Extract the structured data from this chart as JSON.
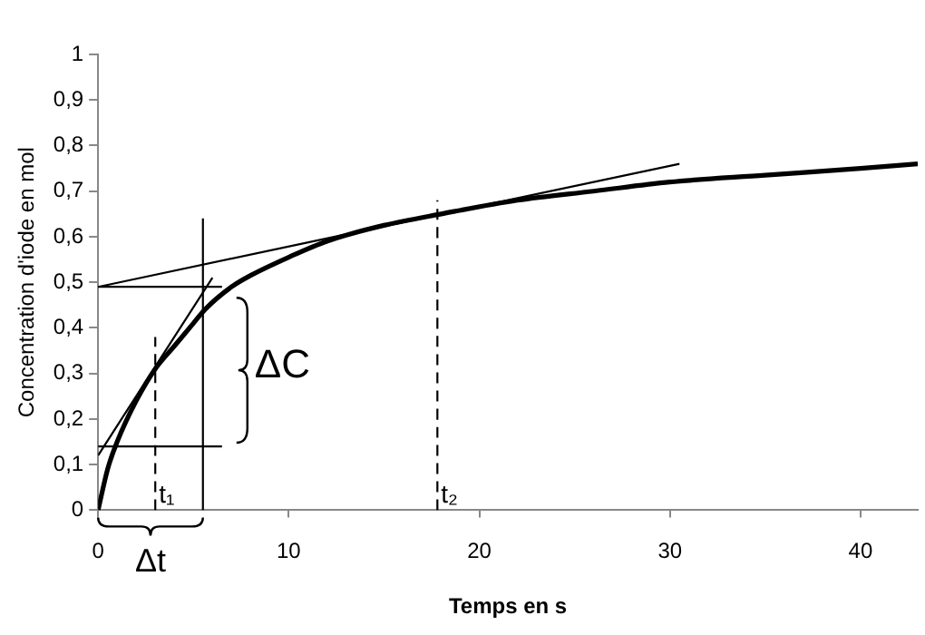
{
  "chart_data": {
    "type": "line",
    "xlabel": "Temps en s",
    "ylabel": "Concentration d'iode en mol",
    "xlim": [
      0,
      43
    ],
    "ylim": [
      0,
      1
    ],
    "xticks": [
      0,
      10,
      20,
      30,
      40
    ],
    "yticks": [
      0,
      {
        "value": 0.1,
        "label": "0,1"
      },
      {
        "value": 0.2,
        "label": "0,2"
      },
      {
        "value": 0.3,
        "label": "0,3"
      },
      {
        "value": 0.4,
        "label": "0,4"
      },
      {
        "value": 0.5,
        "label": "0,5"
      },
      {
        "value": 0.6,
        "label": "0,6"
      },
      {
        "value": 0.7,
        "label": "0,7"
      },
      {
        "value": 0.8,
        "label": "0,8"
      },
      {
        "value": 0.9,
        "label": "0,9"
      },
      1
    ],
    "grid": false,
    "legend": false,
    "marker": "none",
    "series": [
      {
        "color": "#000000",
        "line_style": "solid",
        "x": [
          0,
          0.5,
          1,
          2,
          3,
          4,
          5,
          5.6,
          7,
          8,
          10,
          12,
          15,
          18,
          22,
          26,
          30,
          35,
          40,
          43
        ],
        "values": [
          0,
          0.09,
          0.15,
          0.24,
          0.31,
          0.36,
          0.41,
          0.44,
          0.49,
          0.515,
          0.555,
          0.59,
          0.625,
          0.65,
          0.68,
          0.7,
          0.72,
          0.735,
          0.75,
          0.76
        ]
      },
      {
        "color": "#000000",
        "line_style": "solid",
        "x": [
          0,
          6
        ],
        "values": [
          0.12,
          0.51
        ]
      },
      {
        "color": "#000000",
        "line_style": "solid",
        "x": [
          0,
          30.5
        ],
        "values": [
          0.49,
          0.76
        ]
      },
      {
        "color": "#000000",
        "line_style": "solid",
        "x": [
          0,
          6.5
        ],
        "values": [
          0.49,
          0.49
        ]
      },
      {
        "color": "#000000",
        "line_style": "solid",
        "x": [
          0,
          6.5
        ],
        "values": [
          0.14,
          0.14
        ]
      },
      {
        "color": "#000000",
        "line_style": "solid",
        "x": [
          5.5,
          5.5
        ],
        "values": [
          0,
          0.64
        ]
      },
      {
        "color": "#000000",
        "line_style": "dashed",
        "x": [
          3,
          3
        ],
        "values": [
          0,
          0.38
        ]
      },
      {
        "color": "#000000",
        "line_style": "dashed",
        "x": [
          17.8,
          17.8
        ],
        "values": [
          0,
          0.68
        ]
      }
    ],
    "annotations": [
      {
        "text": "t₁",
        "x": 3,
        "y": 0
      },
      {
        "text": "t₂",
        "x": 17.8,
        "y": 0
      },
      "ΔC",
      "Δt"
    ]
  }
}
